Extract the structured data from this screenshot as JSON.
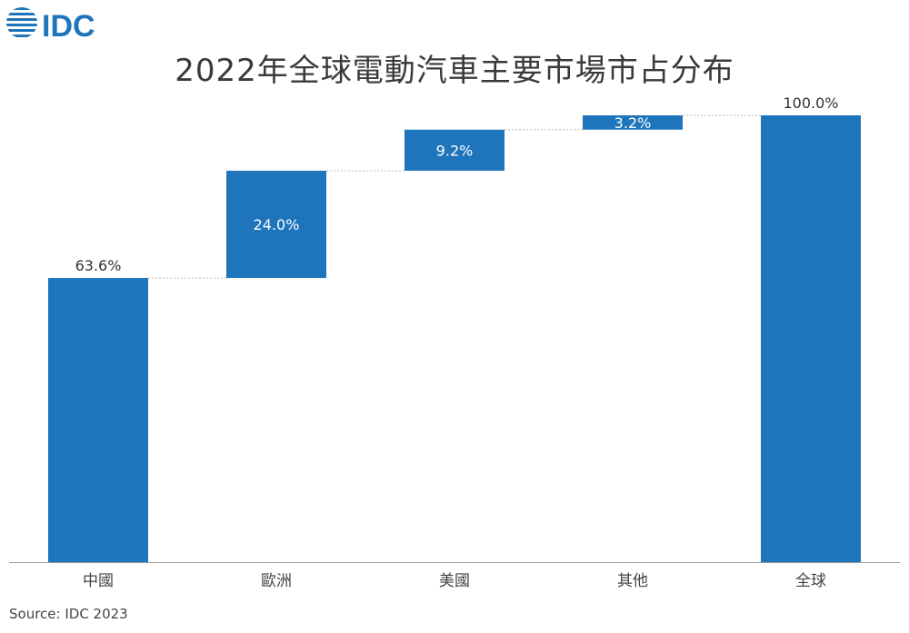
{
  "logo": {
    "text": "IDC",
    "color": "#1f75bb"
  },
  "title": "2022年全球電動汽車主要市場市占分布",
  "source": "Source: IDC 2023",
  "colors": {
    "bar": "#1f75bb",
    "axis": "#9a9a9a",
    "connector": "#b8b8b8",
    "label_dark": "#333333",
    "label_light": "#ffffff"
  },
  "chart_data": {
    "type": "bar",
    "subtype": "waterfall",
    "title": "2022年全球電動汽車主要市場市占分布",
    "categories": [
      "中國",
      "歐洲",
      "美國",
      "其他",
      "全球"
    ],
    "values": [
      63.6,
      24.0,
      9.2,
      3.2,
      100.0
    ],
    "value_labels": [
      "63.6%",
      "24.0%",
      "9.2%",
      "3.2%",
      "100.0%"
    ],
    "total_index": 4,
    "ylim": [
      0,
      100
    ],
    "grid": false,
    "xlabel": "",
    "ylabel": ""
  }
}
